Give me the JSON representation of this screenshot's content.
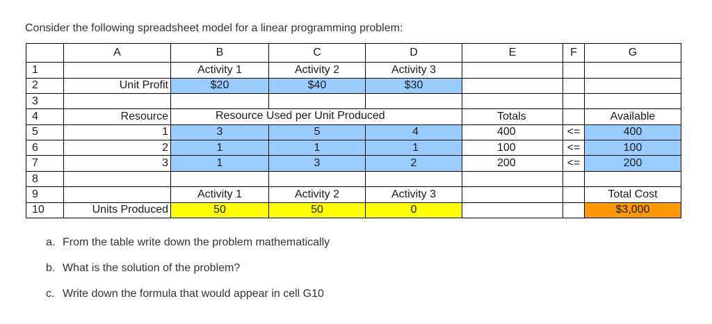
{
  "intro": "Consider the following spreadsheet model for a linear programming problem:",
  "columns": [
    "A",
    "B",
    "C",
    "D",
    "E",
    "F",
    "G"
  ],
  "row_numbers": [
    "1",
    "2",
    "3",
    "4",
    "5",
    "6",
    "7",
    "8",
    "9",
    "10"
  ],
  "cells": {
    "B1": "Activity 1",
    "C1": "Activity 2",
    "D1": "Activity 3",
    "A2": "Unit Profit",
    "B2": "$20",
    "C2": "$40",
    "D2": "$30",
    "A4": "Resource",
    "B4": "Resource Used per Unit Produced",
    "E4": "Totals",
    "G4": "Available",
    "A5": "1",
    "B5": "3",
    "C5": "5",
    "D5": "4",
    "E5": "400",
    "F5": "<=",
    "G5": "400",
    "A6": "2",
    "B6": "1",
    "C6": "1",
    "D6": "1",
    "E6": "100",
    "F6": "<=",
    "G6": "100",
    "A7": "3",
    "B7": "1",
    "C7": "3",
    "D7": "2",
    "E7": "200",
    "F7": "<=",
    "G7": "200",
    "B9": "Activity 1",
    "C9": "Activity 2",
    "D9": "Activity 3",
    "G9": "Total Cost",
    "A10": "Units Produced",
    "B10": "50",
    "C10": "50",
    "D10": "0",
    "G10": "$3,000"
  },
  "questions": [
    {
      "label": "a.",
      "text": "From the table write down the problem mathematically"
    },
    {
      "label": "b.",
      "text": "What is the solution of the problem?"
    },
    {
      "label": "c.",
      "text": "Write down the formula that would appear in cell G10"
    }
  ],
  "colors": {
    "input_fill": "#99ccff",
    "decision_fill": "#ffff00",
    "objective_fill": "#ff9900"
  }
}
